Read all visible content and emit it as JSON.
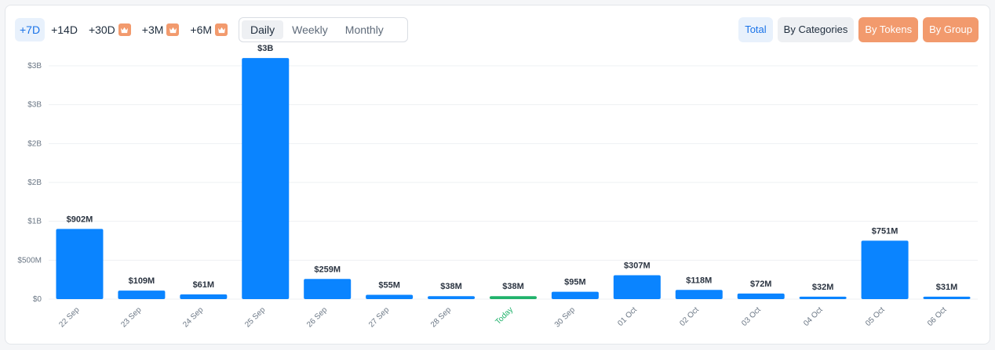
{
  "range_tabs": [
    {
      "label": "+7D",
      "active": true,
      "premium": false
    },
    {
      "label": "+14D",
      "active": false,
      "premium": false
    },
    {
      "label": "+30D",
      "active": false,
      "premium": true
    },
    {
      "label": "+3M",
      "active": false,
      "premium": true
    },
    {
      "label": "+6M",
      "active": false,
      "premium": true
    }
  ],
  "premium_icon": "crown-icon",
  "period_tabs": [
    {
      "label": "Daily",
      "active": true
    },
    {
      "label": "Weekly",
      "active": false
    },
    {
      "label": "Monthly",
      "active": false
    }
  ],
  "view_buttons": [
    {
      "label": "Total",
      "style": "total"
    },
    {
      "label": "By Categories",
      "style": "cat"
    },
    {
      "label": "By Tokens",
      "style": "orange"
    },
    {
      "label": "By Group",
      "style": "orange"
    }
  ],
  "colors": {
    "bar": "#0a84ff",
    "today_bar": "#20b26b",
    "accent_orange": "#f29a6d",
    "grid": "#eef0f3"
  },
  "chart_data": {
    "type": "bar",
    "categories": [
      "22 Sep",
      "23 Sep",
      "24 Sep",
      "25 Sep",
      "26 Sep",
      "27 Sep",
      "28 Sep",
      "Today",
      "30 Sep",
      "01 Oct",
      "02 Oct",
      "03 Oct",
      "04 Oct",
      "05 Oct",
      "06 Oct"
    ],
    "values": [
      902000000,
      109000000,
      61000000,
      3100000000,
      259000000,
      55000000,
      38000000,
      38000000,
      95000000,
      307000000,
      118000000,
      72000000,
      32000000,
      751000000,
      31000000
    ],
    "data_labels": [
      "$902M",
      "$109M",
      "$61M",
      "$3B",
      "$259M",
      "$55M",
      "$38M",
      "$38M",
      "$95M",
      "$307M",
      "$118M",
      "$72M",
      "$32M",
      "$751M",
      "$31M"
    ],
    "highlight_category": "Today",
    "yticks": [
      {
        "value": 0,
        "label": "$0"
      },
      {
        "value": 500000000,
        "label": "$500M"
      },
      {
        "value": 1000000000,
        "label": "$1B"
      },
      {
        "value": 1500000000,
        "label": "$2B"
      },
      {
        "value": 2000000000,
        "label": "$2B"
      },
      {
        "value": 2500000000,
        "label": "$3B"
      },
      {
        "value": 3000000000,
        "label": "$3B"
      }
    ],
    "ylim": [
      0,
      3000000000
    ],
    "grid": true,
    "title": "",
    "xlabel": "",
    "ylabel": ""
  }
}
